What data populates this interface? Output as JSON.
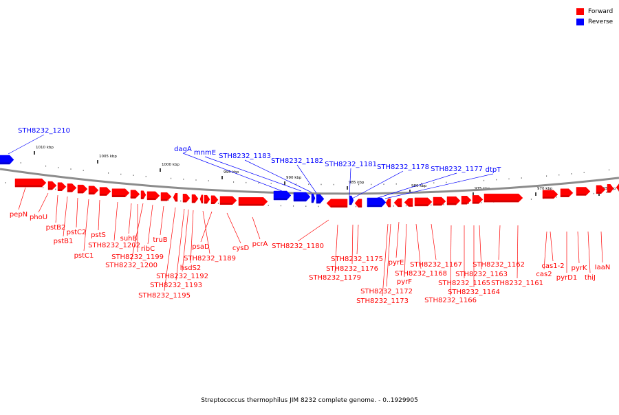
{
  "colors": {
    "forward": "#ff0000",
    "reverse": "#0000ff",
    "backbone": "#8c8c8c"
  },
  "legend": [
    {
      "label": "Forward",
      "color": "#ff0000"
    },
    {
      "label": "Reverse",
      "color": "#0000ff"
    }
  ],
  "caption": "Streptococcus thermophilus JIM 8232 complete genome. - 0..1929905",
  "scale_ticks": [
    {
      "label": "1010 kbp"
    },
    {
      "label": "1005 kbp"
    },
    {
      "label": "1000 kbp"
    },
    {
      "label": "995 kbp"
    },
    {
      "label": "990 kbp"
    },
    {
      "label": "985 kbp"
    },
    {
      "label": "980 kbp"
    },
    {
      "label": "975 kbp"
    },
    {
      "label": "970 kbp"
    },
    {
      "label": "965 kbp"
    }
  ],
  "forward_genes": [
    {
      "label": "pepN"
    },
    {
      "label": "phoU"
    },
    {
      "label": "pstB2"
    },
    {
      "label": "pstB1"
    },
    {
      "label": "pstC2"
    },
    {
      "label": "pstC1"
    },
    {
      "label": "pstS"
    },
    {
      "label": "STH8232_1202"
    },
    {
      "label": "suhB"
    },
    {
      "label": "STH8232_1200"
    },
    {
      "label": "STH8232_1199"
    },
    {
      "label": "ribC"
    },
    {
      "label": "truB"
    },
    {
      "label": "STH8232_1195"
    },
    {
      "label": "STH8232_1193"
    },
    {
      "label": "STH8232_1192"
    },
    {
      "label": "hsdS2"
    },
    {
      "label": "STH8232_1189"
    },
    {
      "label": "psaD"
    },
    {
      "label": "cysD"
    },
    {
      "label": "pcrA"
    },
    {
      "label": "STH8232_1180"
    },
    {
      "label": "STH8232_1179"
    },
    {
      "label": "STH8232_1176"
    },
    {
      "label": "STH8232_1175"
    },
    {
      "label": "STH8232_1173"
    },
    {
      "label": "STH8232_1172"
    },
    {
      "label": "pyrF"
    },
    {
      "label": "pyrE"
    },
    {
      "label": "STH8232_1168"
    },
    {
      "label": "STH8232_1167"
    },
    {
      "label": "STH8232_1166"
    },
    {
      "label": "STH8232_1165"
    },
    {
      "label": "STH8232_1164"
    },
    {
      "label": "STH8232_1163"
    },
    {
      "label": "STH8232_1162"
    },
    {
      "label": "STH8232_1161"
    },
    {
      "label": "cas2"
    },
    {
      "label": "cas1-2"
    },
    {
      "label": "pyrD1"
    },
    {
      "label": "pyrK"
    },
    {
      "label": "thiJ"
    },
    {
      "label": "IaaN"
    }
  ],
  "reverse_genes": [
    {
      "label": "STH8232_1210"
    },
    {
      "label": "dagA"
    },
    {
      "label": "mnmE"
    },
    {
      "label": "STH8232_1183"
    },
    {
      "label": "STH8232_1182"
    },
    {
      "label": "STH8232_1181"
    },
    {
      "label": "STH8232_1178"
    },
    {
      "label": "STH8232_1177"
    },
    {
      "label": "dtpT"
    }
  ]
}
